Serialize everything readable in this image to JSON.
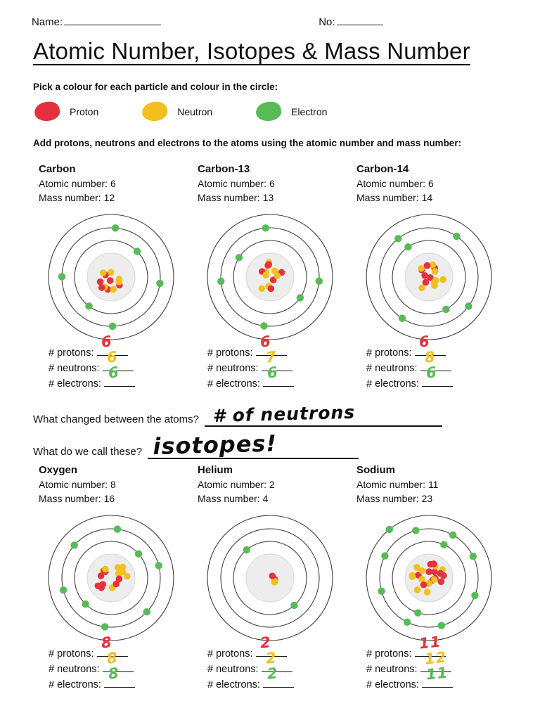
{
  "header": {
    "name_label": "Name:",
    "no_label": "No:"
  },
  "title": "Atomic Number, Isotopes & Mass Number",
  "colors": {
    "proton": "#e5303e",
    "neutron": "#f1c01e",
    "electron": "#57bb56"
  },
  "legend": {
    "instruction": "Pick a colour for each particle and colour in the circle:",
    "items": [
      {
        "label": "Proton"
      },
      {
        "label": "Neutron"
      },
      {
        "label": "Electron"
      }
    ]
  },
  "instruction_atoms": "Add protons, neutrons and electrons to the atoms using the atomic number and mass number:",
  "labels": {
    "atomic_number": "Atomic number:",
    "mass_number": "Mass number:",
    "protons": "# protons:",
    "neutrons": "# neutrons:",
    "electrons": "# electrons:"
  },
  "atoms": [
    {
      "name": "Carbon",
      "atomic_number": "6",
      "mass_number": "12",
      "protons": 6,
      "neutrons": 6,
      "electrons": 6,
      "answers": {
        "protons": "6",
        "neutrons": "6",
        "electrons": "6"
      }
    },
    {
      "name": "Carbon-13",
      "atomic_number": "6",
      "mass_number": "13",
      "protons": 6,
      "neutrons": 7,
      "electrons": 6,
      "answers": {
        "protons": "6",
        "neutrons": "7",
        "electrons": "6"
      }
    },
    {
      "name": "Carbon-14",
      "atomic_number": "6",
      "mass_number": "14",
      "protons": 6,
      "neutrons": 8,
      "electrons": 6,
      "answers": {
        "protons": "6",
        "neutrons": "8",
        "electrons": "6"
      }
    },
    {
      "name": "Oxygen",
      "atomic_number": "8",
      "mass_number": "16",
      "protons": 8,
      "neutrons": 8,
      "electrons": 8,
      "answers": {
        "protons": "8",
        "neutrons": "8",
        "electrons": "8"
      }
    },
    {
      "name": "Helium",
      "atomic_number": "2",
      "mass_number": "4",
      "protons": 2,
      "neutrons": 2,
      "electrons": 2,
      "answers": {
        "protons": "2",
        "neutrons": "2",
        "electrons": "2"
      }
    },
    {
      "name": "Sodium",
      "atomic_number": "11",
      "mass_number": "23",
      "protons": 11,
      "neutrons": 12,
      "electrons": 11,
      "answers": {
        "protons": "11",
        "neutrons": "12",
        "electrons": "11"
      }
    }
  ],
  "questions": [
    {
      "label": "What changed between the atoms?",
      "answer": "# of neutrons"
    },
    {
      "label": "What do we call these?",
      "answer": "isotopes!"
    }
  ]
}
